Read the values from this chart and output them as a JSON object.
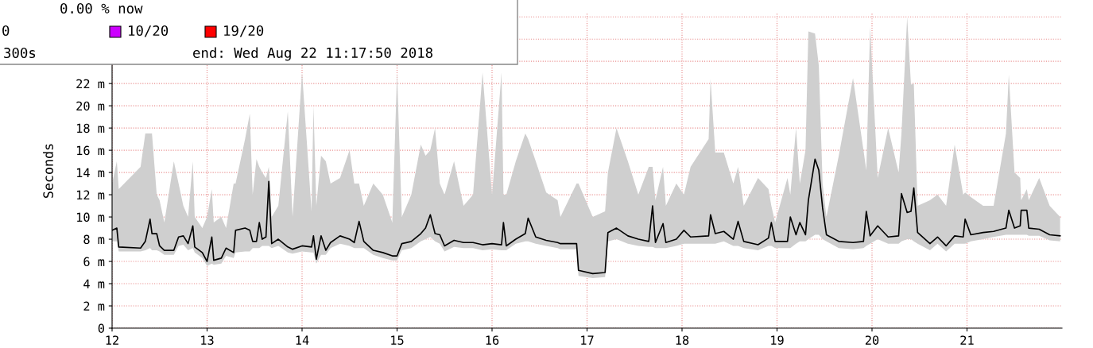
{
  "chart_data": {
    "type": "line",
    "ylabel": "Seconds",
    "annotations": [
      "0.00 % now",
      "0",
      "10/20",
      "19/20",
      "300s",
      "end: Wed Aug 22 11:17:50 2018"
    ],
    "x": [
      12.0,
      12.05,
      12.07,
      12.3,
      12.35,
      12.4,
      12.42,
      12.47,
      12.5,
      12.55,
      12.65,
      12.7,
      12.75,
      12.8,
      12.85,
      12.87,
      12.95,
      13.0,
      13.05,
      13.07,
      13.15,
      13.2,
      13.28,
      13.3,
      13.4,
      13.45,
      13.48,
      13.52,
      13.55,
      13.58,
      13.62,
      13.65,
      13.68,
      13.75,
      13.85,
      13.9,
      14.0,
      14.1,
      14.12,
      14.15,
      14.2,
      14.25,
      14.3,
      14.4,
      14.5,
      14.55,
      14.6,
      14.65,
      14.75,
      14.85,
      14.95,
      15.0,
      15.05,
      15.15,
      15.25,
      15.3,
      15.35,
      15.4,
      15.45,
      15.5,
      15.6,
      15.7,
      15.8,
      15.9,
      16.0,
      16.1,
      16.12,
      16.15,
      16.25,
      16.35,
      16.38,
      16.46,
      16.57,
      16.69,
      16.72,
      16.89,
      16.91,
      17.06,
      17.19,
      17.22,
      17.31,
      17.43,
      17.54,
      17.65,
      17.69,
      17.72,
      17.8,
      17.83,
      17.94,
      18.02,
      18.09,
      18.28,
      18.3,
      18.35,
      18.44,
      18.54,
      18.59,
      18.65,
      18.8,
      18.91,
      18.94,
      18.98,
      19.11,
      19.14,
      19.2,
      19.24,
      19.3,
      19.33,
      19.4,
      19.44,
      19.48,
      19.52,
      19.65,
      19.8,
      19.91,
      19.94,
      19.98,
      20.06,
      20.17,
      20.28,
      20.31,
      20.37,
      20.41,
      20.44,
      20.48,
      20.61,
      20.69,
      20.78,
      20.87,
      20.96,
      20.98,
      21.04,
      21.17,
      21.28,
      21.41,
      21.44,
      21.5,
      21.56,
      21.57,
      21.63,
      21.65,
      21.76,
      21.87,
      21.98
    ],
    "series": [
      {
        "color": "#000000",
        "values": [
          8.8,
          9.0,
          7.3,
          7.2,
          7.8,
          9.8,
          8.5,
          8.5,
          7.4,
          7.0,
          7.0,
          8.2,
          8.3,
          7.6,
          9.2,
          7.3,
          6.8,
          6.0,
          8.2,
          6.1,
          6.3,
          7.2,
          6.8,
          8.8,
          9.0,
          8.8,
          7.8,
          7.8,
          9.5,
          8.0,
          8.2,
          13.2,
          7.6,
          8.0,
          7.3,
          7.1,
          7.4,
          7.3,
          8.3,
          6.2,
          8.3,
          7.0,
          7.7,
          8.3,
          8.0,
          7.7,
          9.6,
          7.8,
          7.0,
          6.8,
          6.5,
          6.5,
          7.6,
          7.8,
          8.5,
          9.0,
          10.2,
          8.5,
          8.4,
          7.4,
          7.9,
          7.7,
          7.7,
          7.5,
          7.6,
          7.5,
          9.5,
          7.4,
          8.0,
          8.5,
          9.9,
          8.2,
          7.9,
          7.7,
          7.6,
          7.6,
          5.2,
          4.9,
          5.0,
          8.6,
          9.0,
          8.3,
          8.0,
          7.8,
          11.0,
          7.7,
          9.4,
          7.7,
          8.0,
          8.8,
          8.2,
          8.3,
          10.2,
          8.5,
          8.7,
          8.0,
          9.6,
          7.8,
          7.5,
          8.1,
          9.5,
          7.8,
          7.8,
          10.0,
          8.4,
          9.5,
          8.4,
          11.5,
          15.2,
          14.2,
          10.8,
          8.4,
          7.8,
          7.7,
          7.8,
          10.5,
          8.3,
          9.2,
          8.2,
          8.3,
          12.1,
          10.4,
          10.5,
          12.6,
          8.6,
          7.6,
          8.2,
          7.4,
          8.3,
          8.2,
          9.8,
          8.4,
          8.6,
          8.7,
          9.0,
          10.6,
          9.0,
          9.2,
          10.6,
          10.6,
          9.0,
          8.9,
          8.4,
          8.3
        ],
        "lower": [
          7.8,
          7.8,
          6.9,
          6.9,
          7.0,
          7.2,
          7.0,
          7.0,
          6.9,
          6.6,
          6.6,
          7.4,
          7.5,
          7.0,
          7.2,
          6.8,
          6.3,
          5.6,
          5.8,
          5.7,
          5.8,
          6.5,
          6.3,
          6.8,
          6.9,
          6.9,
          7.2,
          7.2,
          7.2,
          7.4,
          7.4,
          7.4,
          7.2,
          7.4,
          6.8,
          6.7,
          6.9,
          6.8,
          6.8,
          5.8,
          6.6,
          6.6,
          7.2,
          7.6,
          7.4,
          7.2,
          7.2,
          7.2,
          6.6,
          6.3,
          6.1,
          6.1,
          7.0,
          7.2,
          7.8,
          8.0,
          8.2,
          7.8,
          7.6,
          6.9,
          7.3,
          7.2,
          7.2,
          7.0,
          7.1,
          7.0,
          7.0,
          7.0,
          7.6,
          7.8,
          7.8,
          7.6,
          7.4,
          7.2,
          7.1,
          7.1,
          4.7,
          4.5,
          4.6,
          7.8,
          8.0,
          7.6,
          7.4,
          7.3,
          7.3,
          7.2,
          7.2,
          7.2,
          7.4,
          7.6,
          7.6,
          7.6,
          7.6,
          7.6,
          7.8,
          7.4,
          7.4,
          7.2,
          7.0,
          7.4,
          7.4,
          7.2,
          7.2,
          7.2,
          7.6,
          7.8,
          7.8,
          8.0,
          8.4,
          8.4,
          8.0,
          7.8,
          7.2,
          7.1,
          7.2,
          7.4,
          7.6,
          8.0,
          7.6,
          7.6,
          7.8,
          8.0,
          8.0,
          7.8,
          7.6,
          7.0,
          7.6,
          6.9,
          7.6,
          7.6,
          7.6,
          7.8,
          8.0,
          8.2,
          8.4,
          8.4,
          8.4,
          8.4,
          8.4,
          8.4,
          8.3,
          8.3,
          7.9,
          7.8
        ],
        "upper": [
          13,
          15,
          12.5,
          14.5,
          17.5,
          17.5,
          17.5,
          12,
          11.5,
          9.5,
          15,
          13,
          11,
          10,
          15,
          10,
          9,
          10,
          12.5,
          9.5,
          10,
          9,
          13,
          13,
          17,
          19.3,
          12,
          15.2,
          14.5,
          14,
          13.5,
          14.5,
          10,
          11,
          19.5,
          10,
          23,
          10.5,
          20,
          11,
          15.5,
          15,
          13,
          13.5,
          16,
          13,
          13,
          11,
          13,
          12,
          9.5,
          23,
          10,
          12,
          16.5,
          15.5,
          16,
          18,
          13,
          12,
          15,
          11,
          12,
          23,
          12,
          23,
          12,
          12,
          15,
          17.5,
          17,
          15,
          12.2,
          11.5,
          10,
          13,
          13,
          10,
          10.5,
          14,
          18,
          15,
          12,
          14.5,
          14.5,
          11.5,
          14.5,
          11,
          13,
          12,
          14.5,
          17,
          22.4,
          15.8,
          15.8,
          13,
          14.5,
          11,
          13.5,
          12.5,
          11,
          9.5,
          13.5,
          12,
          18,
          13,
          16,
          26.7,
          26.5,
          23.6,
          13,
          10,
          15.5,
          22.5,
          16,
          14.2,
          27.1,
          13.5,
          18,
          14,
          17.5,
          28,
          21.9,
          22,
          11,
          11.5,
          12,
          11,
          16.5,
          12,
          12.2,
          11.8,
          11,
          11,
          17.5,
          22.8,
          14,
          13.5,
          11.5,
          12.5,
          11.5,
          13.5,
          11,
          10
        ]
      }
    ],
    "xlim": [
      12,
      22.0
    ],
    "xticks": [
      12,
      13,
      14,
      15,
      16,
      17,
      18,
      19,
      20,
      21
    ],
    "ylim": [
      0,
      28.3
    ],
    "yticks": [
      {
        "value": 0,
        "label": "0"
      },
      {
        "value": 2,
        "label": "2 m"
      },
      {
        "value": 4,
        "label": "4 m"
      },
      {
        "value": 6,
        "label": "6 m"
      },
      {
        "value": 8,
        "label": "8 m"
      },
      {
        "value": 10,
        "label": "10 m"
      },
      {
        "value": 12,
        "label": "12 m"
      },
      {
        "value": 14,
        "label": "14 m"
      },
      {
        "value": 16,
        "label": "16 m"
      },
      {
        "value": 18,
        "label": "18 m"
      },
      {
        "value": 20,
        "label": "20 m"
      },
      {
        "value": 22,
        "label": "22 m"
      },
      {
        "value": 24,
        "label": null
      },
      {
        "value": 26,
        "label": null
      },
      {
        "value": 28,
        "label": null
      }
    ],
    "grid": true,
    "legend": false
  }
}
